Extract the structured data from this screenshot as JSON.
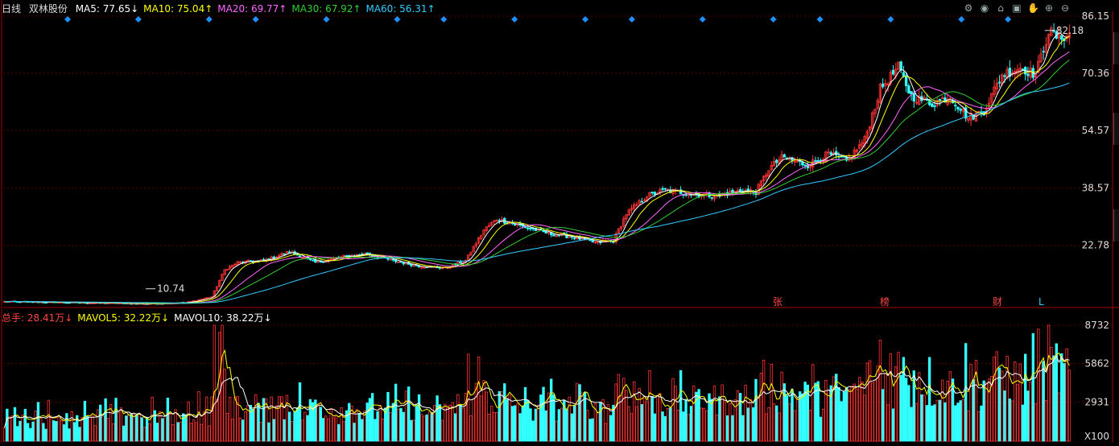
{
  "header": {
    "period": "日线",
    "stock_name": "双林股份",
    "ma": [
      {
        "label": "MA5: 77.65",
        "arrow": "↓",
        "color": "#ffffff"
      },
      {
        "label": "MA10: 75.04",
        "arrow": "↑",
        "color": "#ffff00"
      },
      {
        "label": "MA20: 69.77",
        "arrow": "↑",
        "color": "#ff66ff"
      },
      {
        "label": "MA30: 67.92",
        "arrow": "↑",
        "color": "#33cc33"
      },
      {
        "label": "MA60: 56.31",
        "arrow": "↑",
        "color": "#33ccff"
      }
    ]
  },
  "volume_header": {
    "items": [
      {
        "label": "总手: 28.41万",
        "arrow": "↓",
        "color": "#ff4444"
      },
      {
        "label": "MAVOL5: 32.22万",
        "arrow": "↓",
        "color": "#ffff00"
      },
      {
        "label": "MAVOL10: 38.22万",
        "arrow": "↓",
        "color": "#ffffff"
      }
    ]
  },
  "toolbar": {
    "icons": [
      "settings-icon",
      "eye-icon",
      "home-icon",
      "lock-icon",
      "hand-icon",
      "zoom-in-icon",
      "zoom-out-icon"
    ]
  },
  "price_axis": {
    "ticks": [
      "86.15",
      "70.36",
      "54.57",
      "38.57",
      "22.78"
    ],
    "ylim": [
      6.0,
      86.15
    ]
  },
  "volume_axis": {
    "ticks": [
      "8732",
      "5862",
      "2931"
    ],
    "unit": "X100",
    "ylim": [
      0,
      8732
    ]
  },
  "annotations": {
    "high_label": "82.18",
    "low_label": "10.74",
    "event_marks": [
      {
        "text": "张"
      },
      {
        "text": "榜"
      },
      {
        "text": "财"
      },
      {
        "text": "L"
      }
    ]
  },
  "colors": {
    "up": "#ff3333",
    "down": "#33ffff",
    "grid": "#5a0000",
    "axis": "#a00000",
    "ma5": "#ffffff",
    "ma10": "#ffff00",
    "ma20": "#ff66ff",
    "ma30": "#33cc33",
    "ma60": "#33ccff",
    "diamond": "#1e90ff"
  },
  "chart_data": {
    "type": "candlestick",
    "title": "",
    "closes_anchor": [
      [
        0,
        7.2
      ],
      [
        20,
        7.0
      ],
      [
        40,
        6.8
      ],
      [
        55,
        6.6
      ],
      [
        70,
        6.9
      ],
      [
        80,
        8.5
      ],
      [
        85,
        16.0
      ],
      [
        90,
        18.0
      ],
      [
        100,
        18.5
      ],
      [
        110,
        21.0
      ],
      [
        120,
        18.0
      ],
      [
        130,
        19.5
      ],
      [
        140,
        20.5
      ],
      [
        150,
        18.5
      ],
      [
        160,
        17.0
      ],
      [
        170,
        16.5
      ],
      [
        178,
        18.5
      ],
      [
        185,
        27.0
      ],
      [
        190,
        30.0
      ],
      [
        200,
        28.0
      ],
      [
        210,
        26.0
      ],
      [
        220,
        25.0
      ],
      [
        228,
        23.5
      ],
      [
        235,
        24.0
      ],
      [
        240,
        31.5
      ],
      [
        248,
        36.5
      ],
      [
        255,
        38.0
      ],
      [
        265,
        37.0
      ],
      [
        275,
        36.5
      ],
      [
        285,
        38.0
      ],
      [
        290,
        37.5
      ],
      [
        295,
        44.0
      ],
      [
        300,
        47.0
      ],
      [
        310,
        45.0
      ],
      [
        318,
        48.0
      ],
      [
        325,
        46.0
      ],
      [
        332,
        52.0
      ],
      [
        338,
        66.0
      ],
      [
        345,
        72.0
      ],
      [
        350,
        64.0
      ],
      [
        358,
        62.0
      ],
      [
        365,
        64.0
      ],
      [
        372,
        58.0
      ],
      [
        378,
        60.0
      ],
      [
        385,
        70.0
      ],
      [
        392,
        72.0
      ],
      [
        398,
        70.0
      ],
      [
        403,
        82.0
      ],
      [
        407,
        80.0
      ],
      [
        410,
        81.0
      ]
    ],
    "n_bars": 412,
    "volume_range": [
      300,
      8732
    ],
    "diamond_count": 16
  }
}
